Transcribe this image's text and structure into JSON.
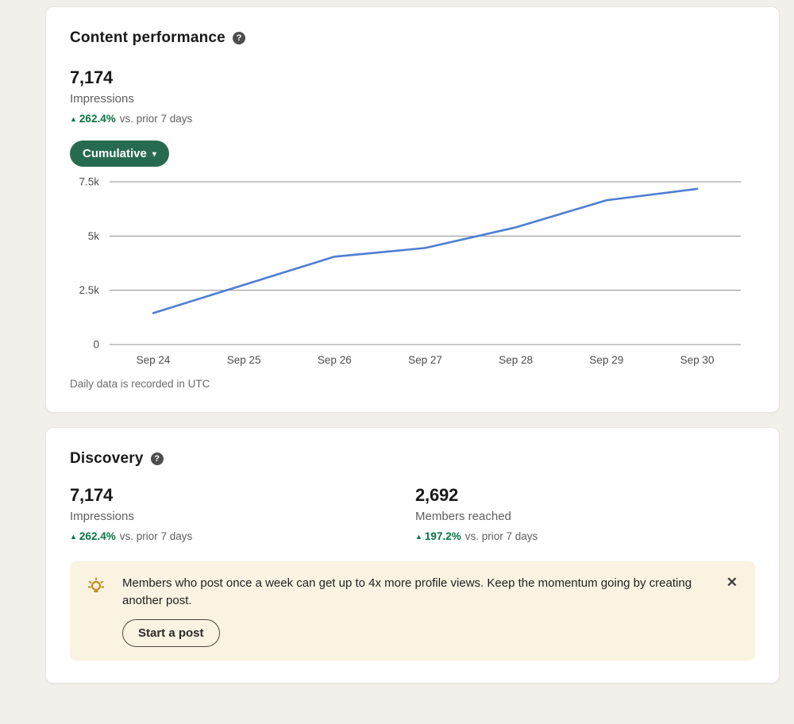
{
  "icons": {
    "help": "?",
    "chevron_down": "▾",
    "up_arrow": "▲",
    "close": "✕",
    "lightbulb": "lightbulb-icon"
  },
  "content_performance": {
    "title": "Content performance",
    "metric": {
      "value": "7,174",
      "label": "Impressions",
      "delta": "262.4%",
      "delta_suffix": "vs. prior 7 days"
    },
    "filter_button": {
      "label": "Cumulative"
    },
    "footnote": "Daily data is recorded in UTC"
  },
  "chart_data": {
    "type": "line",
    "title": "",
    "xlabel": "",
    "ylabel": "",
    "x": [
      "Sep 24",
      "Sep 25",
      "Sep 26",
      "Sep 27",
      "Sep 28",
      "Sep 29",
      "Sep 30"
    ],
    "values": [
      1450,
      2750,
      4050,
      4450,
      5400,
      6650,
      7174
    ],
    "ylim": [
      0,
      7500
    ],
    "yticks": [
      0,
      2500,
      5000,
      7500
    ],
    "ytick_labels": [
      "0",
      "2.5k",
      "5k",
      "7.5k"
    ],
    "grid": true,
    "legend": "none",
    "line_color": "#4e7ed3",
    "grid_color": "#8f8f8f"
  },
  "discovery": {
    "title": "Discovery",
    "metrics": [
      {
        "value": "7,174",
        "label": "Impressions",
        "delta": "262.4%",
        "delta_suffix": "vs. prior 7 days"
      },
      {
        "value": "2,692",
        "label": "Members reached",
        "delta": "197.2%",
        "delta_suffix": "vs. prior 7 days"
      }
    ],
    "banner": {
      "text": "Members who post once a week can get up to 4x more profile views. Keep the momentum going by creating another post.",
      "button_label": "Start a post",
      "background": "#fbf3e2",
      "accent": "#bb8717"
    }
  }
}
